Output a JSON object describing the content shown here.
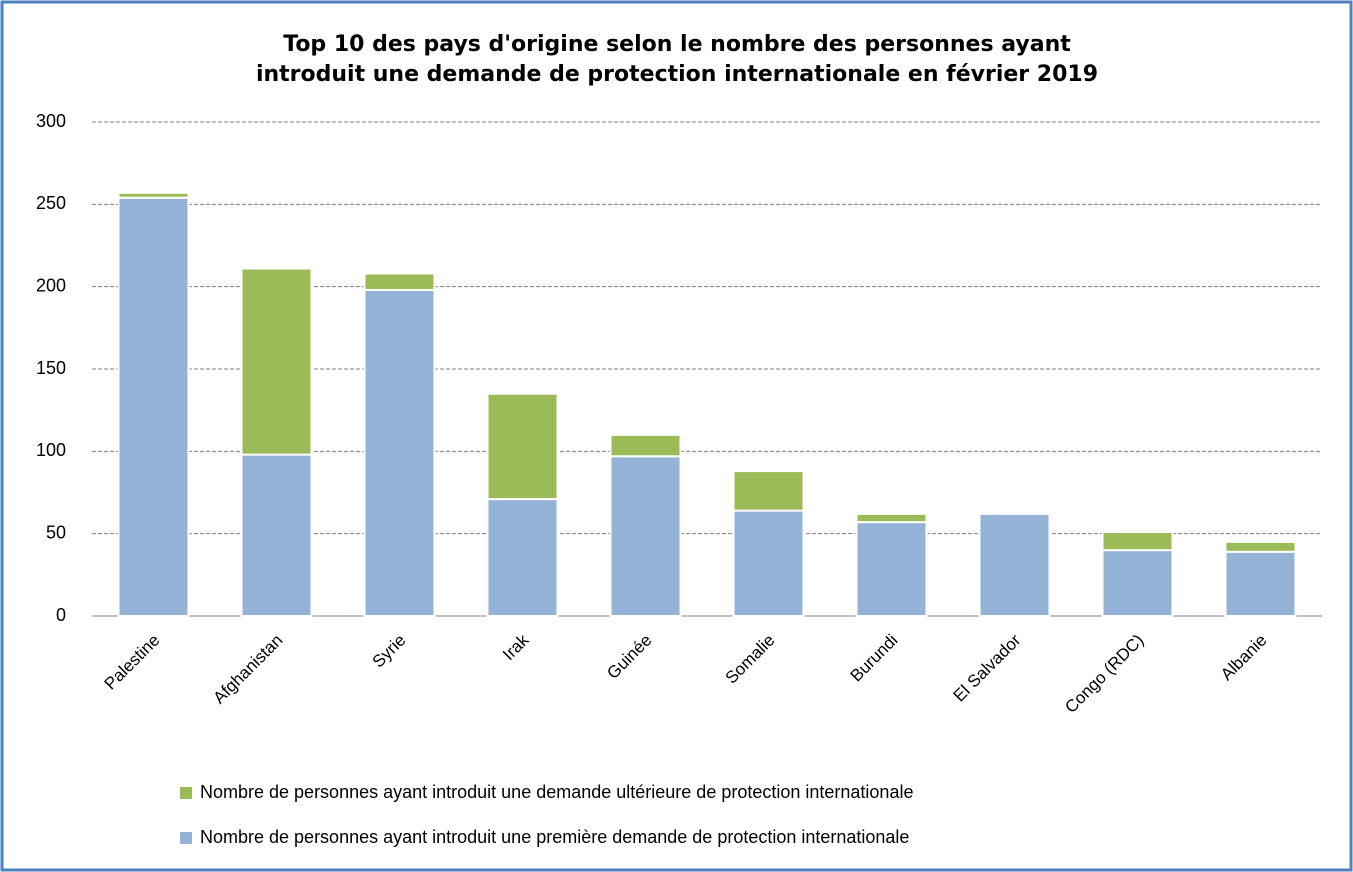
{
  "chart_data": {
    "type": "stacked-bar",
    "title": [
      "Top 10 des pays d'origine selon le nombre des personnes ayant",
      "introduit une demande de protection internationale en février 2019"
    ],
    "categories": [
      "Palestine",
      "Afghanistan",
      "Syrie",
      "Irak",
      "Guinée",
      "Somalie",
      "Burundi",
      "El Salvador",
      "Congo (RDC)",
      "Albanie"
    ],
    "series": [
      {
        "name": "Nombre de personnes ayant introduit une première demande de protection internationale",
        "color": "#95b3d7",
        "values": [
          254,
          98,
          198,
          71,
          97,
          64,
          57,
          62,
          40,
          39
        ]
      },
      {
        "name": "Nombre de personnes ayant introduit une demande ultérieure de protection internationale",
        "color": "#9bbb59",
        "values": [
          3,
          113,
          10,
          64,
          13,
          24,
          5,
          0,
          11,
          6
        ]
      }
    ],
    "ylim": [
      0,
      300
    ],
    "yticks": [
      0,
      50,
      100,
      150,
      200,
      250,
      300
    ],
    "grid": true
  }
}
